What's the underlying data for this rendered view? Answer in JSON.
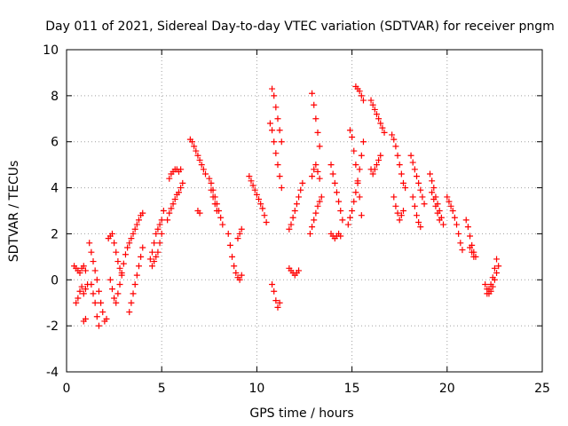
{
  "chart_data": {
    "type": "scatter",
    "title": "Day 011 of 2021, Sidereal Day-to-day VTEC variation (SDTVAR) for receiver pngm",
    "xlabel": "GPS time / hours",
    "ylabel": "SDTVAR / TECUs",
    "xlim": [
      0,
      25
    ],
    "ylim": [
      -4,
      10
    ],
    "xticks": [
      "0",
      "5",
      "10",
      "15",
      "20",
      "25"
    ],
    "yticks": [
      "-4",
      "-2",
      "0",
      "2",
      "4",
      "6",
      "8",
      "10"
    ],
    "grid": true,
    "marker": "+",
    "color": "#ff0000",
    "series": [
      {
        "name": "SDTVAR",
        "x": [
          0.4,
          0.5,
          0.6,
          0.7,
          0.8,
          0.9,
          1.0,
          0.5,
          0.6,
          0.7,
          0.8,
          0.9,
          1.0,
          1.1,
          0.9,
          1.0,
          1.2,
          1.3,
          1.4,
          1.5,
          1.6,
          1.7,
          1.8,
          1.9,
          2.0,
          2.1,
          1.3,
          1.4,
          1.5,
          1.6,
          1.7,
          2.2,
          2.3,
          2.4,
          2.5,
          2.6,
          2.7,
          2.8,
          2.9,
          2.3,
          2.4,
          2.5,
          2.6,
          2.7,
          2.8,
          2.9,
          3.0,
          3.1,
          3.2,
          3.3,
          3.4,
          3.5,
          3.6,
          3.7,
          3.8,
          3.9,
          4.0,
          3.3,
          3.4,
          3.5,
          3.6,
          3.7,
          3.8,
          3.9,
          4.0,
          4.4,
          4.5,
          4.6,
          4.7,
          4.8,
          4.9,
          5.0,
          5.1,
          4.5,
          4.6,
          4.7,
          4.8,
          4.9,
          5.0,
          5.3,
          5.4,
          5.5,
          5.6,
          5.7,
          5.8,
          5.9,
          6.0,
          6.1,
          5.4,
          5.5,
          5.6,
          5.7,
          5.8,
          5.9,
          6.0,
          6.5,
          6.6,
          6.7,
          6.8,
          6.9,
          7.0,
          7.1,
          7.2,
          7.3,
          6.9,
          7.0,
          7.5,
          7.6,
          7.7,
          7.8,
          7.9,
          8.0,
          8.1,
          8.2,
          7.6,
          7.7,
          7.8,
          7.9,
          8.5,
          8.6,
          8.7,
          8.8,
          8.9,
          9.0,
          9.1,
          9.2,
          9.0,
          9.1,
          9.2,
          9.6,
          9.7,
          9.8,
          9.9,
          10.0,
          10.1,
          10.2,
          10.3,
          10.4,
          10.5,
          10.7,
          10.8,
          10.9,
          11.0,
          11.1,
          11.2,
          11.3,
          10.8,
          10.9,
          11.0,
          11.1,
          11.2,
          11.3,
          10.8,
          10.9,
          11.0,
          11.1,
          11.2,
          11.7,
          11.8,
          11.9,
          12.0,
          12.1,
          12.2,
          12.3,
          12.4,
          11.7,
          11.8,
          11.9,
          12.0,
          12.1,
          12.2,
          12.8,
          12.9,
          13.0,
          13.1,
          13.2,
          13.3,
          13.4,
          12.9,
          13.0,
          13.1,
          13.2,
          13.3,
          12.9,
          13.0,
          13.1,
          13.2,
          13.3,
          13.9,
          14.0,
          14.1,
          14.2,
          14.3,
          14.4,
          14.5,
          13.9,
          14.0,
          14.1,
          14.2,
          14.3,
          14.4,
          14.8,
          14.9,
          15.0,
          15.1,
          15.2,
          15.3,
          15.4,
          15.5,
          15.6,
          14.9,
          15.0,
          15.1,
          15.2,
          15.3,
          15.4,
          15.5,
          15.2,
          15.3,
          15.4,
          15.5,
          15.6,
          16.0,
          16.1,
          16.2,
          16.3,
          16.4,
          16.5,
          16.6,
          16.7,
          16.0,
          16.1,
          16.2,
          16.3,
          16.4,
          16.5,
          17.1,
          17.2,
          17.3,
          17.4,
          17.5,
          17.6,
          17.7,
          17.8,
          17.2,
          17.3,
          17.4,
          17.5,
          17.6,
          17.7,
          18.1,
          18.2,
          18.3,
          18.4,
          18.5,
          18.6,
          18.7,
          18.8,
          18.2,
          18.3,
          18.4,
          18.5,
          18.6,
          19.1,
          19.2,
          19.3,
          19.4,
          19.5,
          19.6,
          19.7,
          19.8,
          19.2,
          19.3,
          19.4,
          19.5,
          19.6,
          20.0,
          20.1,
          20.2,
          20.3,
          20.4,
          20.5,
          20.6,
          20.7,
          20.8,
          21.0,
          21.1,
          21.2,
          21.3,
          21.4,
          21.5,
          21.2,
          21.3,
          21.4,
          22.0,
          22.1,
          22.2,
          22.3,
          22.4,
          22.5,
          22.6,
          22.7,
          22.1,
          22.2,
          22.3,
          22.4,
          22.5,
          22.6
        ],
        "y": [
          0.6,
          0.5,
          0.4,
          0.3,
          0.5,
          0.6,
          0.4,
          -1.0,
          -0.8,
          -0.5,
          -0.3,
          -0.6,
          -0.4,
          -0.2,
          -1.8,
          -1.7,
          1.6,
          1.2,
          0.8,
          0.4,
          0.0,
          -0.5,
          -1.0,
          -1.4,
          -1.8,
          -1.7,
          -0.2,
          -0.6,
          -1.0,
          -1.6,
          -2.0,
          1.8,
          1.9,
          2.0,
          1.6,
          1.2,
          0.8,
          0.5,
          0.2,
          0.0,
          -0.4,
          -0.8,
          -1.0,
          -0.6,
          -0.2,
          0.3,
          0.7,
          1.1,
          1.4,
          1.6,
          1.8,
          2.0,
          2.2,
          2.4,
          2.6,
          2.8,
          2.9,
          -1.4,
          -1.0,
          -0.6,
          -0.2,
          0.2,
          0.6,
          1.0,
          1.4,
          0.9,
          1.2,
          1.6,
          2.0,
          2.2,
          2.4,
          2.6,
          3.0,
          0.6,
          0.8,
          1.0,
          1.2,
          1.6,
          2.0,
          2.6,
          2.9,
          3.1,
          3.3,
          3.5,
          3.7,
          3.8,
          4.0,
          4.2,
          4.4,
          4.6,
          4.7,
          4.8,
          4.8,
          4.7,
          4.8,
          6.1,
          6.0,
          5.8,
          5.6,
          5.4,
          5.2,
          5.0,
          4.8,
          4.6,
          3.0,
          2.9,
          4.4,
          4.2,
          3.9,
          3.6,
          3.3,
          3.0,
          2.7,
          2.4,
          3.9,
          3.6,
          3.3,
          3.0,
          2.0,
          1.5,
          1.0,
          0.6,
          0.3,
          0.1,
          0.0,
          0.2,
          1.8,
          2.0,
          2.2,
          4.5,
          4.3,
          4.1,
          3.9,
          3.7,
          3.5,
          3.3,
          3.1,
          2.8,
          2.5,
          6.8,
          6.5,
          6.0,
          5.5,
          5.0,
          4.5,
          4.0,
          8.3,
          8.0,
          7.5,
          7.0,
          6.5,
          6.0,
          -0.2,
          -0.5,
          -0.9,
          -1.2,
          -1.0,
          2.2,
          2.4,
          2.7,
          3.0,
          3.3,
          3.6,
          3.9,
          4.2,
          0.5,
          0.4,
          0.3,
          0.2,
          0.3,
          0.4,
          2.0,
          2.3,
          2.6,
          2.9,
          3.2,
          3.4,
          3.6,
          8.1,
          7.6,
          7.0,
          6.4,
          5.8,
          4.5,
          4.8,
          5.0,
          4.7,
          4.4,
          5.0,
          4.6,
          4.2,
          3.8,
          3.4,
          3.0,
          2.6,
          2.0,
          1.9,
          1.8,
          1.9,
          2.0,
          1.9,
          2.4,
          2.7,
          3.0,
          3.4,
          3.8,
          4.3,
          4.8,
          5.4,
          6.0,
          6.5,
          6.2,
          5.6,
          5.0,
          4.2,
          3.6,
          2.8,
          8.4,
          8.3,
          8.2,
          8.0,
          7.8,
          7.8,
          7.6,
          7.4,
          7.2,
          7.0,
          6.8,
          6.6,
          6.4,
          4.8,
          4.6,
          4.8,
          5.0,
          5.2,
          5.4,
          6.3,
          6.1,
          5.8,
          5.4,
          5.0,
          4.6,
          4.2,
          4.0,
          3.6,
          3.2,
          2.9,
          2.6,
          2.8,
          3.0,
          5.4,
          5.1,
          4.8,
          4.5,
          4.2,
          3.9,
          3.6,
          3.3,
          3.6,
          3.2,
          2.8,
          2.5,
          2.3,
          4.6,
          4.3,
          4.0,
          3.6,
          3.3,
          3.0,
          2.7,
          2.4,
          3.8,
          3.5,
          3.2,
          2.9,
          2.6,
          3.6,
          3.4,
          3.2,
          3.0,
          2.7,
          2.4,
          2.0,
          1.6,
          1.3,
          2.6,
          2.3,
          1.9,
          1.5,
          1.2,
          1.0,
          1.4,
          1.2,
          1.0,
          -0.2,
          -0.4,
          -0.6,
          -0.5,
          -0.3,
          0.0,
          0.3,
          0.6,
          -0.6,
          -0.4,
          -0.2,
          0.1,
          0.5,
          0.9
        ]
      }
    ]
  }
}
